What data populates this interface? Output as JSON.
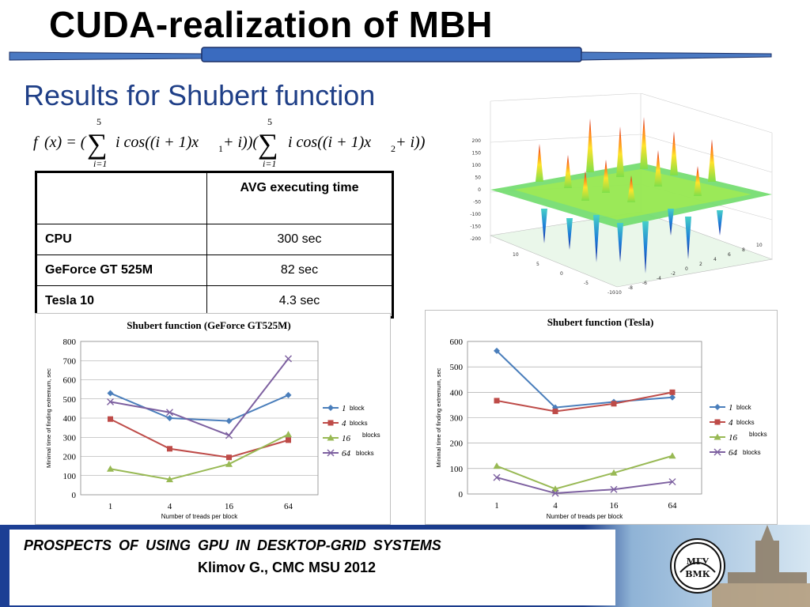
{
  "title": "CUDA-realization of MBH",
  "subtitle": "Results for Shubert function",
  "formula": {
    "f": "f",
    "x": "(x) = (",
    "sum_top": "5",
    "sum_bottom": "i=1",
    "term1": "i cos((i + 1)x",
    "sub1": "1",
    "close1": " + i))(",
    "term2": "i cos((i + 1)x",
    "sub2": "2",
    "close2": " + i))"
  },
  "table": {
    "header": "AVG executing time",
    "rows": [
      {
        "label": "CPU",
        "value": "300 sec"
      },
      {
        "label": "GeForce GT 525M",
        "value": "82 sec"
      },
      {
        "label": "Tesla 10",
        "value": "4.3 sec"
      }
    ]
  },
  "surface_plot": {
    "z_ticks": [
      "200",
      "150",
      "100",
      "50",
      "0",
      "-50",
      "-100",
      "-150",
      "-200"
    ],
    "xy_ticks_left": [
      "10",
      "5",
      "0",
      "-5",
      "-10"
    ],
    "xy_ticks_right": [
      "-10",
      "-8",
      "-6",
      "-4",
      "-2",
      "0",
      "2",
      "4",
      "6",
      "8",
      "10"
    ]
  },
  "chart_data": [
    {
      "type": "line",
      "title": "Shubert function (GeForce GT525M)",
      "xlabel": "Number of treads per block",
      "ylabel": "Minimal time of finding extremum, sec",
      "categories": [
        "1",
        "4",
        "16",
        "64"
      ],
      "ylim": [
        0,
        800
      ],
      "yticks": [
        0,
        100,
        200,
        300,
        400,
        500,
        600,
        700,
        800
      ],
      "grid": true,
      "legend_position": "right",
      "series": [
        {
          "name": "1",
          "suffix": "block",
          "values": [
            530,
            400,
            385,
            520
          ],
          "color": "#4a7ebb",
          "marker": "diamond"
        },
        {
          "name": "4",
          "suffix": "blocks",
          "values": [
            395,
            240,
            195,
            285
          ],
          "color": "#be4b48",
          "marker": "square"
        },
        {
          "name": "16",
          "suffix": "blocks",
          "values": [
            135,
            80,
            160,
            315
          ],
          "color": "#98b954",
          "marker": "triangle"
        },
        {
          "name": "64",
          "suffix": "blocks",
          "values": [
            485,
            430,
            310,
            710
          ],
          "color": "#7d60a0",
          "marker": "x"
        }
      ]
    },
    {
      "type": "line",
      "title": "Shubert function (Tesla)",
      "xlabel": "Number of treads per block",
      "ylabel": "Minimal time of finding extremum, sec",
      "categories": [
        "1",
        "4",
        "16",
        "64"
      ],
      "ylim": [
        0,
        600
      ],
      "yticks": [
        0,
        100,
        200,
        300,
        400,
        500,
        600
      ],
      "grid": true,
      "legend_position": "right",
      "series": [
        {
          "name": "1",
          "suffix": "block",
          "values": [
            563,
            340,
            362,
            380
          ],
          "color": "#4a7ebb",
          "marker": "diamond"
        },
        {
          "name": "4",
          "suffix": "blocks",
          "values": [
            367,
            325,
            355,
            400
          ],
          "color": "#be4b48",
          "marker": "square"
        },
        {
          "name": "16",
          "suffix": "blocks",
          "values": [
            110,
            20,
            83,
            150
          ],
          "color": "#98b954",
          "marker": "triangle"
        },
        {
          "name": "64",
          "suffix": "blocks",
          "values": [
            65,
            3,
            18,
            48
          ],
          "color": "#7d60a0",
          "marker": "x"
        }
      ]
    }
  ],
  "footer": {
    "line1": "PROSPECTS  OF  USING  GPU  IN  DESKTOP-GRID  SYSTEMS",
    "line2": "Klimov G., CMC MSU 2012",
    "logo_text_top": "МГУ",
    "logo_text_bottom": "ВМК"
  },
  "colors": {
    "title_bar": "#2f5597",
    "subtitle": "#1f3f87",
    "footer_bg_left": "#1c3f94",
    "footer_bg_right": "#c7dbe9"
  }
}
